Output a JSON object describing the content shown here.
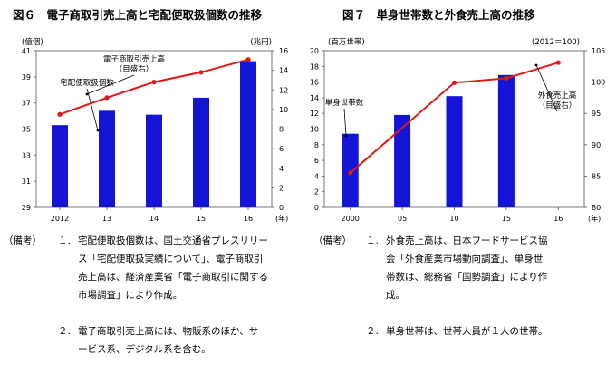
{
  "chart_data": [
    {
      "type": "bar+line",
      "title": "図６　電子商取引売上高と宅配便取扱個数の推移",
      "categories": [
        "2012",
        "13",
        "14",
        "15",
        "16"
      ],
      "xunit": "(年)",
      "left_axis": {
        "unit": "(億個)",
        "range": [
          29,
          41
        ],
        "ticks": [
          29,
          31,
          33,
          35,
          37,
          39,
          41
        ]
      },
      "right_axis": {
        "unit": "(兆円)",
        "range": [
          0,
          16
        ],
        "ticks": [
          0,
          2,
          4,
          6,
          8,
          10,
          12,
          14,
          16
        ]
      },
      "series": [
        {
          "name": "宅配便取扱個数",
          "kind": "bar",
          "axis": "left",
          "values": [
            35.3,
            36.4,
            36.1,
            37.4,
            40.2
          ]
        },
        {
          "name": "電子商取引売上高\n（目盛右）",
          "kind": "line",
          "axis": "right",
          "values": [
            9.5,
            11.2,
            12.8,
            13.8,
            15.1
          ]
        }
      ],
      "colors": {
        "bar": "#1414d6",
        "line": "#e01818"
      }
    },
    {
      "type": "bar+line",
      "title": "図７　単身世帯数と外食売上高の推移",
      "categories": [
        "2000",
        "05",
        "10",
        "15",
        "16"
      ],
      "xunit": "(年)",
      "left_axis": {
        "unit": "(百万世帯)",
        "range": [
          0,
          20
        ],
        "ticks": [
          0,
          2,
          4,
          6,
          8,
          10,
          12,
          14,
          16,
          18,
          20
        ]
      },
      "right_axis": {
        "unit": "(2012＝100)",
        "range": [
          80,
          105
        ],
        "ticks": [
          80,
          85,
          90,
          95,
          100,
          105
        ]
      },
      "series": [
        {
          "name": "単身世帯数",
          "kind": "bar",
          "axis": "left",
          "values": [
            9.4,
            11.8,
            14.2,
            16.9,
            null
          ]
        },
        {
          "name": "外食売上高\n（目盛右）",
          "kind": "line",
          "axis": "right",
          "values": [
            85.5,
            null,
            99.9,
            100.6,
            103.1
          ]
        }
      ],
      "colors": {
        "bar": "#1414d6",
        "line": "#e01818"
      }
    }
  ],
  "notes": [
    {
      "label": "（備考）",
      "items": [
        {
          "num": "１.",
          "lines": [
            "宅配便取扱個数は、国土交通省プレスリリー",
            "ス「宅配便取扱実績について」、電子商取引",
            "売上高は、経済産業省「電子商取引に関する",
            "市場調査」により作成。"
          ]
        },
        {
          "num": "２.",
          "lines": [
            "電子商取引売上高には、物販系のほか、サ",
            "ービス系、デジタル系を含む。"
          ]
        }
      ]
    },
    {
      "label": "（備考）",
      "items": [
        {
          "num": "１.",
          "lines": [
            "外食売上高は、日本フードサービス協",
            "会「外食産業市場動向調査」、単身世",
            "帯数は、総務省「国勢調査」により作",
            "成。"
          ]
        },
        {
          "num": "２.",
          "lines": [
            "単身世帯は、世帯人員が１人の世帯。"
          ]
        }
      ]
    }
  ]
}
